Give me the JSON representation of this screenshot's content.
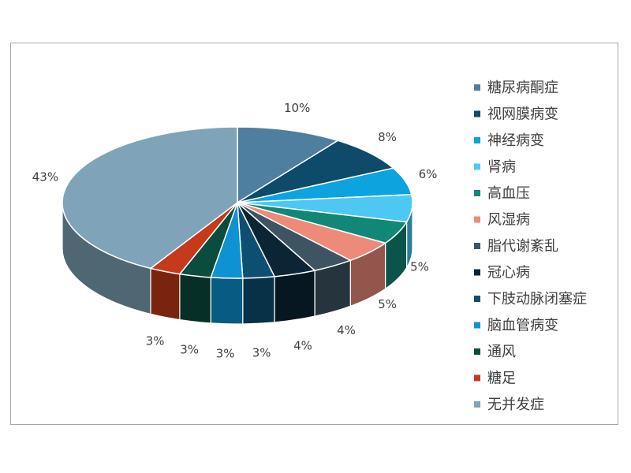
{
  "chart_data": {
    "type": "pie",
    "title": "",
    "legend_position": "right",
    "style": "3d-exploded",
    "series": [
      {
        "name": "糖尿病酮症",
        "value": 10,
        "label": "10%",
        "color": "#4f7fa0"
      },
      {
        "name": "视网膜病变",
        "value": 8,
        "label": "8%",
        "color": "#0e4a6a"
      },
      {
        "name": "神经病变",
        "value": 6,
        "label": "6%",
        "color": "#0da3df"
      },
      {
        "name": "肾病",
        "value": 6,
        "label": "",
        "color": "#4cc8f2"
      },
      {
        "name": "高血压",
        "value": 5,
        "label": "5%",
        "color": "#118877"
      },
      {
        "name": "风湿病",
        "value": 5,
        "label": "5%",
        "color": "#ee8a7a"
      },
      {
        "name": "脂代谢紊乱",
        "value": 4,
        "label": "4%",
        "color": "#3d5563"
      },
      {
        "name": "冠心病",
        "value": 4,
        "label": "4%",
        "color": "#0b2535"
      },
      {
        "name": "下肢动脉闭塞症",
        "value": 3,
        "label": "3%",
        "color": "#0c4f73"
      },
      {
        "name": "脑血管病变",
        "value": 3,
        "label": "3%",
        "color": "#0d93d3"
      },
      {
        "name": "通风",
        "value": 3,
        "label": "3%",
        "color": "#0a4d3f"
      },
      {
        "name": "糖足",
        "value": 3,
        "label": "3%",
        "color": "#c43a1a"
      },
      {
        "name": "无并发症",
        "value": 43,
        "label": "43%",
        "color": "#7fa4ba"
      }
    ]
  }
}
